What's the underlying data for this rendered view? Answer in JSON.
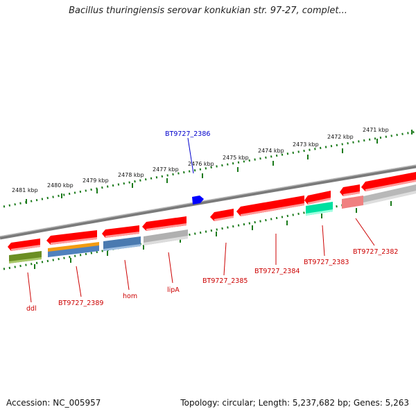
{
  "title": "Bacillus thuringiensis serovar konkukian str. 97-27, complet...",
  "footer": {
    "accession": "Accession: NC_005957",
    "summary": "Topology: circular; Length: 5,237,682 bp; Genes: 5,263"
  },
  "colors": {
    "backbone": "#808080",
    "gene_red": "#ff0000",
    "gene_blue": "#0000ff",
    "label_red": "#cc0000",
    "label_blue": "#0000cc",
    "tick_green": "#1a7a1a"
  },
  "kbp_labels": [
    "2481 kbp",
    "2480 kbp",
    "2479 kbp",
    "2478 kbp",
    "2477 kbp",
    "2476 kbp",
    "2475 kbp",
    "2474 kbp",
    "2473 kbp",
    "2472 kbp",
    "2471 kbp"
  ],
  "gene_labels": {
    "bt2386": "BT9727_2386",
    "ddl": "ddl",
    "bt2389": "BT9727_2389",
    "hom": "hom",
    "lipA": "lipA",
    "bt2385": "BT9727_2385",
    "bt2384": "BT9727_2384",
    "bt2383": "BT9727_2383",
    "bt2382": "BT9727_2382"
  }
}
